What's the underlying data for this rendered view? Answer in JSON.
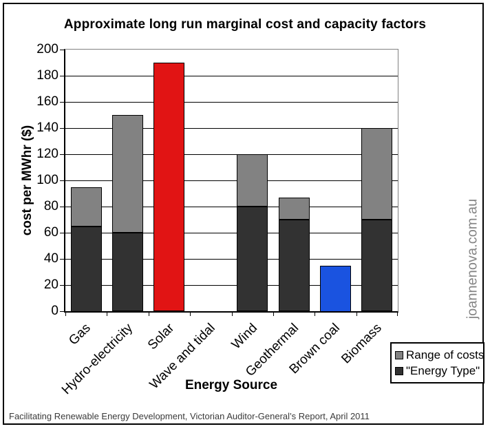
{
  "chart_data": {
    "type": "bar",
    "stacked": true,
    "title": "Approximate long run marginal cost and capacity factors",
    "xlabel": "Energy Source",
    "ylabel": "cost per MWhr ($)",
    "ylim": [
      0,
      200
    ],
    "ytick_step": 20,
    "grid": "horizontal",
    "legend_position": "bottom-right-outside",
    "categories": [
      "Gas",
      "Hydro-electricity",
      "Solar",
      "Wave and tidal",
      "Wind",
      "Geothermal",
      "Brown coal",
      "Biomass"
    ],
    "bars": [
      {
        "category": "Gas",
        "segments": [
          {
            "series": "\"Energy Type\"",
            "from": 0,
            "to": 65,
            "color": "#323232"
          },
          {
            "series": "Range of costs",
            "from": 65,
            "to": 95,
            "color": "#828282"
          }
        ]
      },
      {
        "category": "Hydro-electricity",
        "segments": [
          {
            "series": "\"Energy Type\"",
            "from": 0,
            "to": 60,
            "color": "#323232"
          },
          {
            "series": "Range of costs",
            "from": 60,
            "to": 150,
            "color": "#828282"
          }
        ]
      },
      {
        "category": "Solar",
        "segments": [
          {
            "series": "\"Energy Type\" (highlighted red)",
            "from": 0,
            "to": 190,
            "color": "#e11414"
          }
        ]
      },
      {
        "category": "Wave and tidal",
        "segments": []
      },
      {
        "category": "Wind",
        "segments": [
          {
            "series": "\"Energy Type\"",
            "from": 0,
            "to": 80,
            "color": "#323232"
          },
          {
            "series": "Range of costs",
            "from": 80,
            "to": 120,
            "color": "#828282"
          }
        ]
      },
      {
        "category": "Geothermal",
        "segments": [
          {
            "series": "\"Energy Type\"",
            "from": 0,
            "to": 70,
            "color": "#323232"
          },
          {
            "series": "Range of costs",
            "from": 70,
            "to": 87,
            "color": "#828282"
          }
        ]
      },
      {
        "category": "Brown coal",
        "segments": [
          {
            "series": "\"Energy Type\" (highlighted blue)",
            "from": 0,
            "to": 35,
            "color": "#1a53e0"
          }
        ]
      },
      {
        "category": "Biomass",
        "segments": [
          {
            "series": "\"Energy Type\"",
            "from": 0,
            "to": 70,
            "color": "#323232"
          },
          {
            "series": "Range of costs",
            "from": 70,
            "to": 140,
            "color": "#828282"
          }
        ]
      }
    ],
    "legend": [
      {
        "label": "Range of costs",
        "color": "#828282"
      },
      {
        "label": "\"Energy Type\"",
        "color": "#323232"
      }
    ]
  },
  "watermark": {
    "text": "joannenova.com.au"
  },
  "footer": {
    "source": "Facilitating Renewable Energy Development, Victorian Auditor-General’s Report, April 2011"
  }
}
